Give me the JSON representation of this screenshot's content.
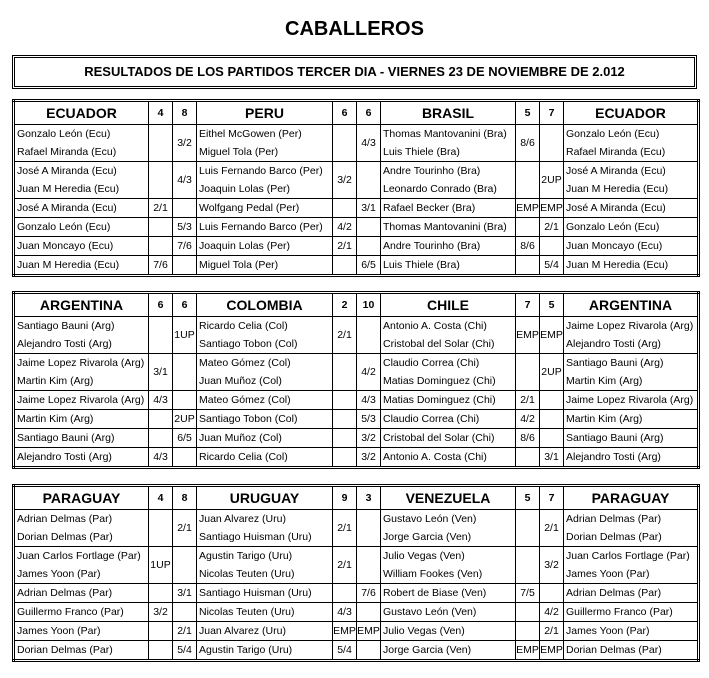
{
  "title": "CABALLEROS",
  "subtitle": "RESULTADOS  DE  LOS PARTIDOS TERCER DIA - VIERNES 23 DE NOVIEMBRE DE 2.012",
  "blocks": [
    {
      "header": [
        "ECUADOR",
        4,
        8,
        "PERU",
        6,
        6,
        "BRASIL",
        5,
        7,
        "ECUADOR"
      ],
      "rows": [
        {
          "players": [
            [
              "Gonzalo León (Ecu)",
              "Rafael Miranda (Ecu)"
            ],
            [
              "Eithel McGowen (Per)",
              "Miguel Tola (Per)"
            ],
            [
              "Thomas Mantovanini (Bra)",
              "Luis Thiele (Bra)"
            ],
            [
              "Gonzalo León (Ecu)",
              "Rafael Miranda (Ecu)"
            ]
          ],
          "scores": [
            null,
            "3/2",
            null,
            "4/3",
            "8/6",
            null
          ]
        },
        {
          "players": [
            [
              "José A Miranda (Ecu)",
              "Juan M Heredia (Ecu)"
            ],
            [
              "Luis Fernando Barco (Per)",
              "Joaquin Lolas (Per)"
            ],
            [
              "Andre Tourinho (Bra)",
              "Leonardo Conrado (Bra)"
            ],
            [
              "José A Miranda (Ecu)",
              "Juan M Heredia (Ecu)"
            ]
          ],
          "scores": [
            null,
            "4/3",
            "3/2",
            null,
            null,
            "2UP"
          ]
        },
        {
          "players": [
            "José A Miranda (Ecu)",
            "Wolfgang Pedal (Per)",
            "Rafael Becker (Bra)",
            "José A Miranda (Ecu)"
          ],
          "scores": [
            "2/1",
            null,
            null,
            "3/1",
            "EMP",
            "EMP"
          ]
        },
        {
          "players": [
            "Gonzalo León (Ecu)",
            "Luis Fernando Barco (Per)",
            "Thomas Mantovanini (Bra)",
            "Gonzalo León (Ecu)"
          ],
          "scores": [
            null,
            "5/3",
            "4/2",
            null,
            null,
            "2/1"
          ]
        },
        {
          "players": [
            "Juan Moncayo (Ecu)",
            "Joaquin Lolas (Per)",
            "Andre Tourinho (Bra)",
            "Juan Moncayo (Ecu)"
          ],
          "scores": [
            null,
            "7/6",
            "2/1",
            null,
            "8/6",
            null
          ]
        },
        {
          "players": [
            "Juan M Heredia (Ecu)",
            "Miguel Tola (Per)",
            "Luis Thiele (Bra)",
            "Juan M Heredia (Ecu)"
          ],
          "scores": [
            "7/6",
            null,
            null,
            "6/5",
            null,
            "5/4"
          ]
        }
      ]
    },
    {
      "header": [
        "ARGENTINA",
        6,
        6,
        "COLOMBIA",
        2,
        10,
        "CHILE",
        7,
        5,
        "ARGENTINA"
      ],
      "rows": [
        {
          "players": [
            [
              "Santiago Bauni (Arg)",
              "Alejandro Tosti (Arg)"
            ],
            [
              "Ricardo Celia (Col)",
              "Santiago Tobon (Col)"
            ],
            [
              "Antonio A. Costa (Chi)",
              "Cristobal del Solar (Chi)"
            ],
            [
              "Jaime Lopez Rivarola (Arg)",
              "Alejandro Tosti (Arg)"
            ]
          ],
          "scores": [
            null,
            "1UP",
            "2/1",
            null,
            "EMP",
            "EMP"
          ]
        },
        {
          "players": [
            [
              "Jaime Lopez Rivarola (Arg)",
              "Martin Kim (Arg)"
            ],
            [
              "Mateo Gómez (Col)",
              "Juan Muñoz (Col)"
            ],
            [
              "Claudio Correa (Chi)",
              "Matias Dominguez (Chi)"
            ],
            [
              "Santiago Bauni (Arg)",
              "Martin Kim (Arg)"
            ]
          ],
          "scores": [
            "3/1",
            null,
            null,
            "4/2",
            null,
            "2UP"
          ]
        },
        {
          "players": [
            "Jaime Lopez Rivarola (Arg)",
            "Mateo Gómez (Col)",
            "Matias Dominguez (Chi)",
            "Jaime Lopez Rivarola (Arg)"
          ],
          "scores": [
            "4/3",
            null,
            null,
            "4/3",
            "2/1",
            null
          ]
        },
        {
          "players": [
            "Martin Kim (Arg)",
            "Santiago Tobon (Col)",
            "Claudio Correa (Chi)",
            "Martin Kim (Arg)"
          ],
          "scores": [
            null,
            "2UP",
            null,
            "5/3",
            "4/2",
            null
          ]
        },
        {
          "players": [
            "Santiago Bauni (Arg)",
            "Juan Muñoz (Col)",
            "Cristobal del Solar (Chi)",
            "Santiago Bauni (Arg)"
          ],
          "scores": [
            null,
            "6/5",
            null,
            "3/2",
            "8/6",
            null
          ]
        },
        {
          "players": [
            "Alejandro Tosti (Arg)",
            "Ricardo Celia (Col)",
            "Antonio A. Costa (Chi)",
            "Alejandro Tosti (Arg)"
          ],
          "scores": [
            "4/3",
            null,
            null,
            "3/2",
            null,
            "3/1"
          ]
        }
      ]
    },
    {
      "header": [
        "PARAGUAY",
        4,
        8,
        "URUGUAY",
        9,
        3,
        "VENEZUELA",
        5,
        7,
        "PARAGUAY"
      ],
      "rows": [
        {
          "players": [
            [
              "Adrian Delmas (Par)",
              "Dorian Delmas (Par)"
            ],
            [
              "Juan Alvarez (Uru)",
              "Santiago Huisman (Uru)"
            ],
            [
              "Gustavo León (Ven)",
              "Jorge Garcia (Ven)"
            ],
            [
              "Adrian Delmas (Par)",
              "Dorian Delmas (Par)"
            ]
          ],
          "scores": [
            null,
            "2/1",
            "2/1",
            null,
            null,
            "2/1"
          ]
        },
        {
          "players": [
            [
              "Juan Carlos Fortlage (Par)",
              "James Yoon (Par)"
            ],
            [
              "Agustin Tarigo (Uru)",
              "Nicolas Teuten (Uru)"
            ],
            [
              "Julio Vegas (Ven)",
              "William Fookes (Ven)"
            ],
            [
              "Juan Carlos Fortlage (Par)",
              "James Yoon (Par)"
            ]
          ],
          "scores": [
            "1UP",
            null,
            "2/1",
            null,
            null,
            "3/2"
          ]
        },
        {
          "players": [
            "Adrian Delmas (Par)",
            "Santiago Huisman (Uru)",
            "Robert de Biase (Ven)",
            "Adrian Delmas (Par)"
          ],
          "scores": [
            null,
            "3/1",
            null,
            "7/6",
            "7/5",
            null
          ]
        },
        {
          "players": [
            "Guillermo Franco (Par)",
            "Nicolas Teuten (Uru)",
            "Gustavo León (Ven)",
            "Guillermo Franco (Par)"
          ],
          "scores": [
            "3/2",
            null,
            "4/3",
            null,
            null,
            "4/2"
          ]
        },
        {
          "players": [
            "James Yoon (Par)",
            "Juan Alvarez (Uru)",
            "Julio Vegas (Ven)",
            "James Yoon (Par)"
          ],
          "scores": [
            null,
            "2/1",
            "EMP",
            "EMP",
            null,
            "2/1"
          ]
        },
        {
          "players": [
            "Dorian Delmas (Par)",
            "Agustin Tarigo (Uru)",
            "Jorge Garcia (Ven)",
            "Dorian Delmas (Par)"
          ],
          "scores": [
            null,
            "5/4",
            "5/4",
            null,
            "EMP",
            "EMP"
          ]
        }
      ]
    }
  ]
}
